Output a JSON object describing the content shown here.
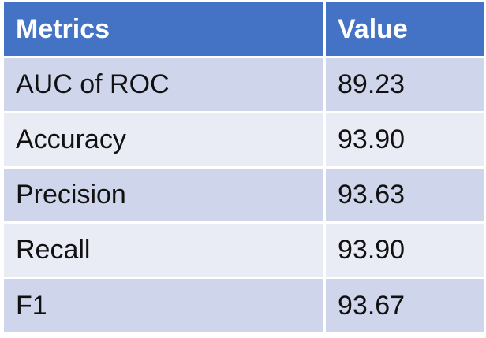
{
  "table": {
    "headers": [
      "Metrics",
      "Value"
    ],
    "rows": [
      {
        "metric": "AUC of ROC",
        "value": "89.23"
      },
      {
        "metric": "Accuracy",
        "value": "93.90"
      },
      {
        "metric": "Precision",
        "value": "93.63"
      },
      {
        "metric": "Recall",
        "value": "93.90"
      },
      {
        "metric": "F1",
        "value": "93.67"
      }
    ]
  },
  "colors": {
    "header_bg": "#4472c4",
    "row_odd_bg": "#cfd5ea",
    "row_even_bg": "#e9ebf5"
  }
}
